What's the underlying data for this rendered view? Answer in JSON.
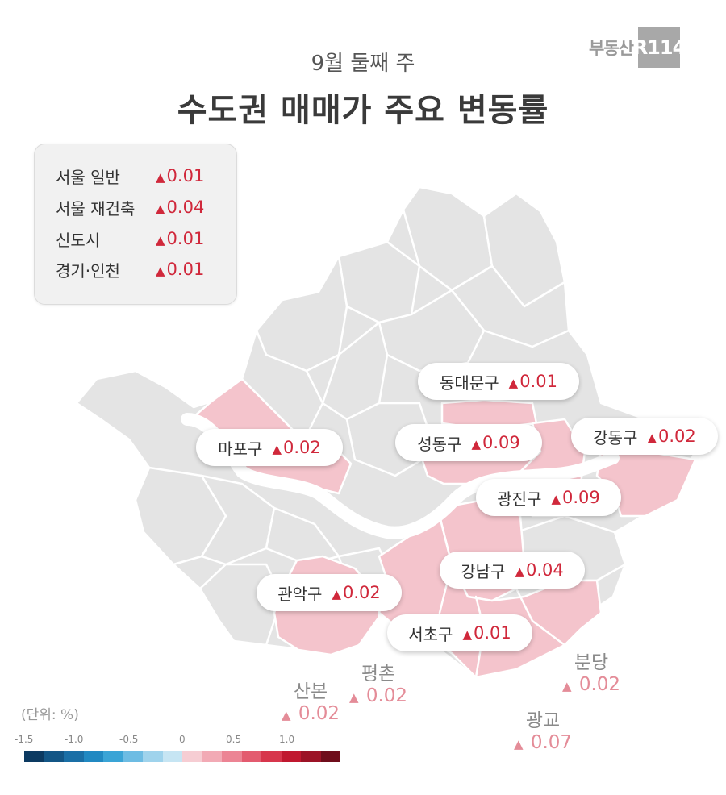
{
  "header": {
    "subtitle": "9월 둘째 주",
    "title": "수도권 매매가 주요 변동률",
    "logo_text": "부동산",
    "logo_badge": "R114"
  },
  "legend": {
    "items": [
      {
        "name": "서울 일반",
        "value": "0.01"
      },
      {
        "name": "서울 재건축",
        "value": "0.04"
      },
      {
        "name": "신도시",
        "value": "0.01"
      },
      {
        "name": "경기·인천",
        "value": "0.01"
      }
    ]
  },
  "districts": {
    "dongdaemun": {
      "name": "동대문구",
      "value": "0.01"
    },
    "mapo": {
      "name": "마포구",
      "value": "0.02"
    },
    "seongdong": {
      "name": "성동구",
      "value": "0.09"
    },
    "gangdong": {
      "name": "강동구",
      "value": "0.02"
    },
    "gwangjin": {
      "name": "광진구",
      "value": "0.09"
    },
    "gangnam": {
      "name": "강남구",
      "value": "0.04"
    },
    "gwanak": {
      "name": "관악구",
      "value": "0.02"
    },
    "seocho": {
      "name": "서초구",
      "value": "0.01"
    }
  },
  "new_towns": {
    "sanbon": {
      "name": "산본",
      "value": "0.02"
    },
    "pyeongchon": {
      "name": "평촌",
      "value": "0.02"
    },
    "bundang": {
      "name": "분당",
      "value": "0.02"
    },
    "gwanggyo": {
      "name": "광교",
      "value": "0.07"
    }
  },
  "scale": {
    "unit_label": "(단위:  %)",
    "ticks": [
      "-1.5",
      "-1.0",
      "-0.5",
      "0",
      "0.5",
      "1.0"
    ],
    "colors": [
      "#0c3a61",
      "#135686",
      "#1a6fa6",
      "#2189c2",
      "#3aa4d6",
      "#6dbce3",
      "#9fd3ec",
      "#c6e5f3",
      "#f6cdd3",
      "#f2aab5",
      "#ec8494",
      "#e35b6f",
      "#d7364c",
      "#c0182f",
      "#9c1326",
      "#6f0d1b"
    ]
  },
  "colors": {
    "rise": "#d0283b",
    "map_base": "#e4e4e4",
    "map_highlight": "#f4c4cc",
    "river": "#ffffff"
  }
}
